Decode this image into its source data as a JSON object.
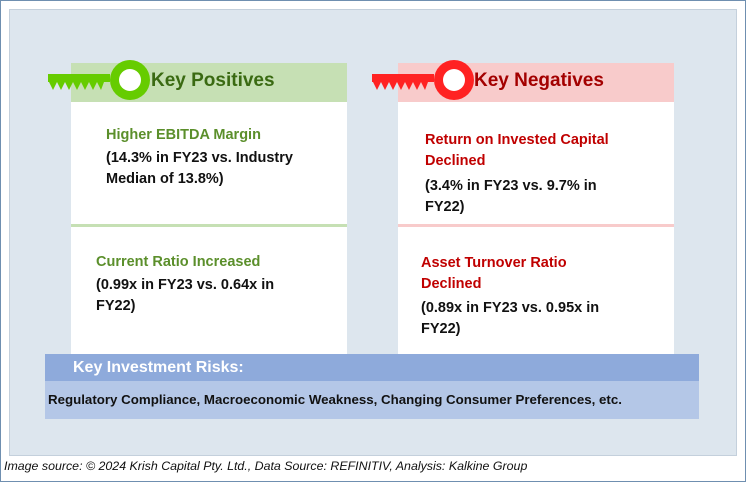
{
  "positives": {
    "header": "Key Positives",
    "items": [
      {
        "title": "Higher EBITDA Margin",
        "detail": "(14.3% in FY23 vs. Industry Median of 13.8%)"
      },
      {
        "title": "Current Ratio Increased",
        "detail": "(0.99x in FY23 vs. 0.64x in FY22)"
      }
    ],
    "color": "#5b8f2b",
    "header_bg": "#c6e0b4",
    "key_color": "#66cc00"
  },
  "negatives": {
    "header": "Key Negatives",
    "items": [
      {
        "title": "Return on Invested Capital Declined",
        "detail": "(3.4% in FY23 vs. 9.7% in FY22)"
      },
      {
        "title": "Asset Turnover Ratio Declined",
        "detail": "(0.89x in FY23 vs. 0.95x in FY22)"
      }
    ],
    "color": "#c00000",
    "header_bg": "#f8cbcb",
    "key_color": "#ff2222"
  },
  "risks": {
    "header": "Key Investment Risks:",
    "text": "Regulatory Compliance, Macroeconomic Weakness, Changing Consumer Preferences, etc."
  },
  "caption": "Image source: © 2024 Krish Capital Pty. Ltd., Data Source: REFINITIV, Analysis: Kalkine Group"
}
